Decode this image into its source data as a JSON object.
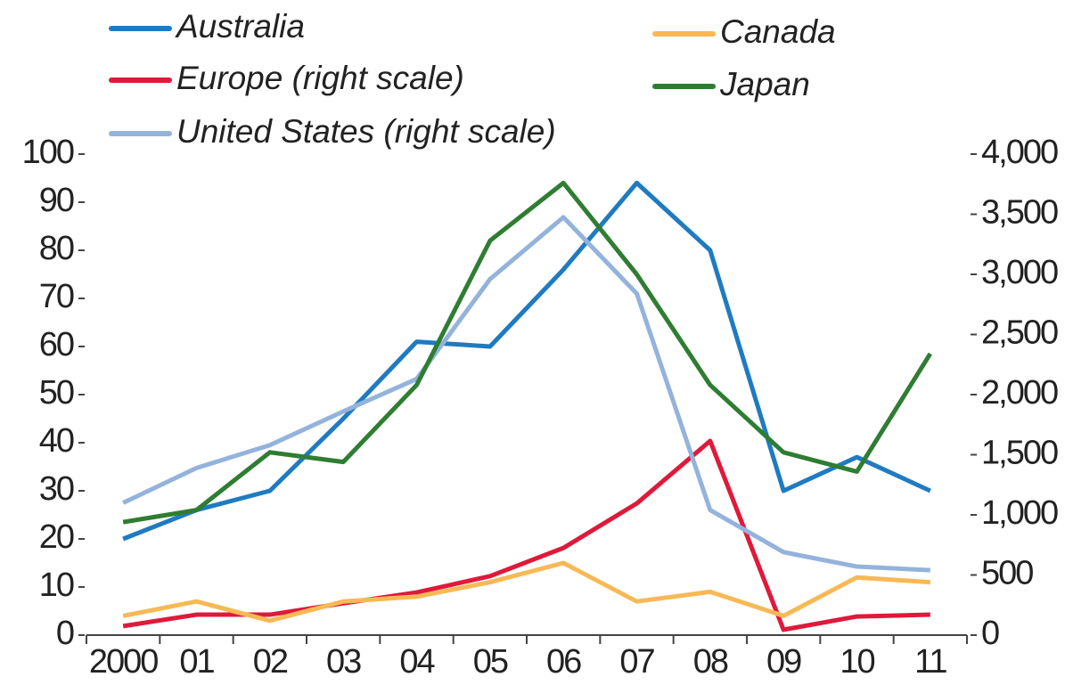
{
  "chart_data": {
    "type": "line",
    "categories": [
      "2000",
      "01",
      "02",
      "03",
      "04",
      "05",
      "06",
      "07",
      "08",
      "09",
      "10",
      "11"
    ],
    "series": [
      {
        "name": "Australia",
        "color": "#1f7bc1",
        "values": [
          20,
          26,
          30,
          45,
          61,
          60,
          76,
          94,
          80,
          30,
          37,
          30
        ]
      },
      {
        "name": "Europe (right scale)",
        "color": "#e0193a",
        "axis": "y2",
        "values": [
          75,
          170,
          170,
          265,
          355,
          490,
          725,
          1095,
          1615,
          45,
          155,
          170
        ]
      },
      {
        "name": "United States (right scale)",
        "color": "#93b3dc",
        "axis": "y2",
        "values": [
          1100,
          1390,
          1580,
          1860,
          2130,
          2960,
          3475,
          2840,
          1040,
          690,
          570,
          540
        ]
      },
      {
        "name": "Canada",
        "color": "#f7b955",
        "values": [
          4,
          7,
          3,
          7,
          8,
          11,
          15,
          7,
          9,
          4,
          12,
          11
        ]
      },
      {
        "name": "Japan",
        "color": "#2f7d32",
        "values": [
          23.5,
          26,
          38,
          36,
          52,
          82,
          94,
          75,
          52,
          38,
          34,
          58.5
        ]
      }
    ],
    "ylim": [
      0,
      100
    ],
    "yticks": [
      0,
      10,
      20,
      30,
      40,
      50,
      60,
      70,
      80,
      90,
      100
    ],
    "y2lim": [
      0,
      4000
    ],
    "y2ticks": [
      0,
      500,
      {
        "value": 1000,
        "label": "1,000"
      },
      {
        "value": 1500,
        "label": "1,500"
      },
      {
        "value": 2000,
        "label": "2,000"
      },
      {
        "value": 2500,
        "label": "2,500"
      },
      {
        "value": 3000,
        "label": "3,000"
      },
      {
        "value": 3500,
        "label": "3,500"
      },
      {
        "value": 4000,
        "label": "4,000"
      }
    ]
  }
}
